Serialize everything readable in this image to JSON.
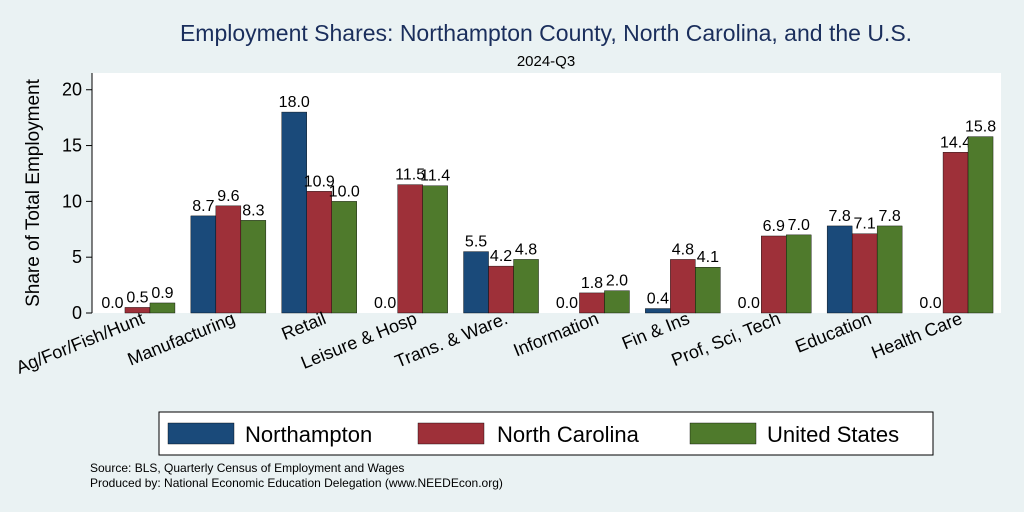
{
  "colors": {
    "background": "#eaf2f3",
    "plot_background": "#ffffff",
    "northampton": "#1a4a7a",
    "north_carolina": "#9e3039",
    "united_states": "#4f7a2c",
    "title": "#1a2e5c"
  },
  "source_lines": [
    "Source: BLS, Quarterly Census of Employment and Wages",
    "Produced by: National Economic Education Delegation (www.NEEDEcon.org)"
  ],
  "chart_data": {
    "type": "bar",
    "title": "Employment Shares: Northampton County, North Carolina, and the U.S.",
    "subtitle": "2024-Q3",
    "xlabel": "",
    "ylabel": "Share of Total Employment",
    "ylim": [
      0,
      21.5
    ],
    "yticks": [
      0,
      5,
      10,
      15,
      20
    ],
    "grid": false,
    "legend_position": "bottom",
    "categories": [
      "Ag/For/Fish/Hunt",
      "Manufacturing",
      "Retail",
      "Leisure & Hosp",
      "Trans. & Ware.",
      "Information",
      "Fin & Ins",
      "Prof, Sci, Tech",
      "Education",
      "Health Care"
    ],
    "series": [
      {
        "name": "Northampton",
        "values": [
          0.0,
          8.7,
          18.0,
          0.0,
          5.5,
          0.0,
          0.4,
          0.0,
          7.8,
          0.0
        ]
      },
      {
        "name": "North Carolina",
        "values": [
          0.5,
          9.6,
          10.9,
          11.5,
          4.2,
          1.8,
          4.8,
          6.9,
          7.1,
          14.4
        ]
      },
      {
        "name": "United States",
        "values": [
          0.9,
          8.3,
          10.0,
          11.4,
          4.8,
          2.0,
          4.1,
          7.0,
          7.8,
          15.8
        ]
      }
    ]
  }
}
